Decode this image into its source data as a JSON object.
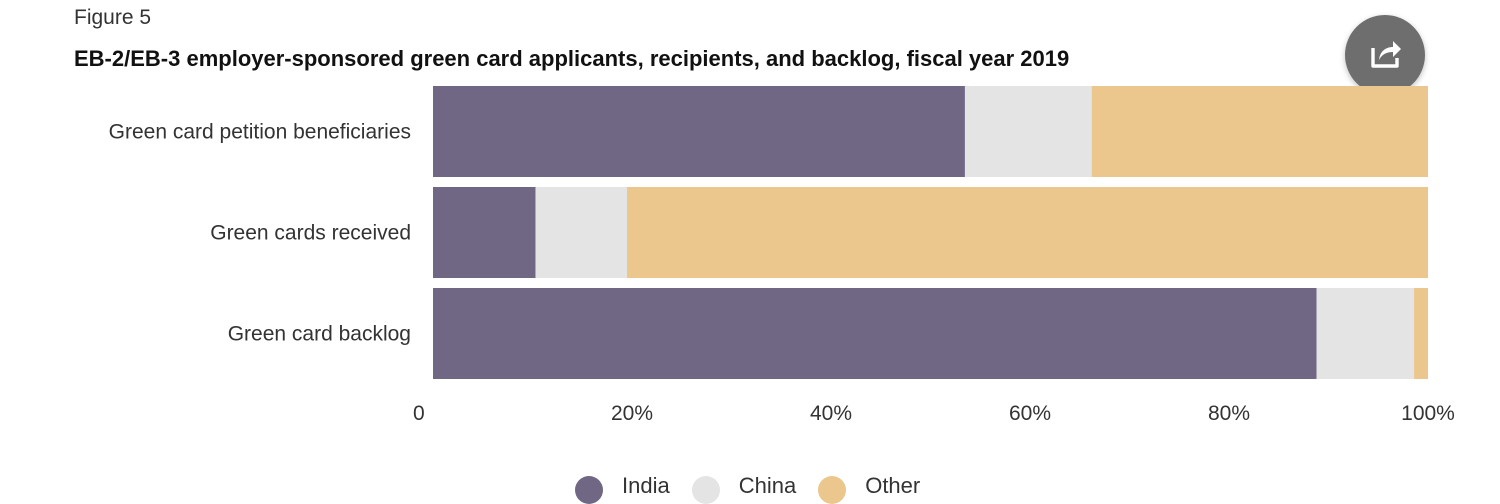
{
  "figure_label": "Figure 5",
  "title": "EB-2/EB-3 employer-sponsored green card applicants, recipients, and backlog, fiscal year 2019",
  "share_button": {
    "icon": "share-icon"
  },
  "colors": {
    "India": "#6f6784",
    "China": "#e4e4e4",
    "Other": "#ebc78d"
  },
  "chart_data": {
    "type": "bar",
    "orientation": "horizontal",
    "stacked": true,
    "categories": [
      "Green card petition beneficiaries",
      "Green cards received",
      "Green card backlog"
    ],
    "series": [
      {
        "name": "India",
        "values": [
          53.3,
          10.3,
          88.8
        ]
      },
      {
        "name": "China",
        "values": [
          12.7,
          9.2,
          9.8
        ]
      },
      {
        "name": "Other",
        "values": [
          33.7,
          80.5,
          1.4
        ]
      }
    ],
    "xlim": [
      0,
      100
    ],
    "x_ticks": [
      0,
      20,
      40,
      60,
      80,
      100
    ],
    "x_tick_labels": [
      "0",
      "20%",
      "40%",
      "60%",
      "80%",
      "100%"
    ],
    "grid": false,
    "legend_position": "bottom-center"
  }
}
